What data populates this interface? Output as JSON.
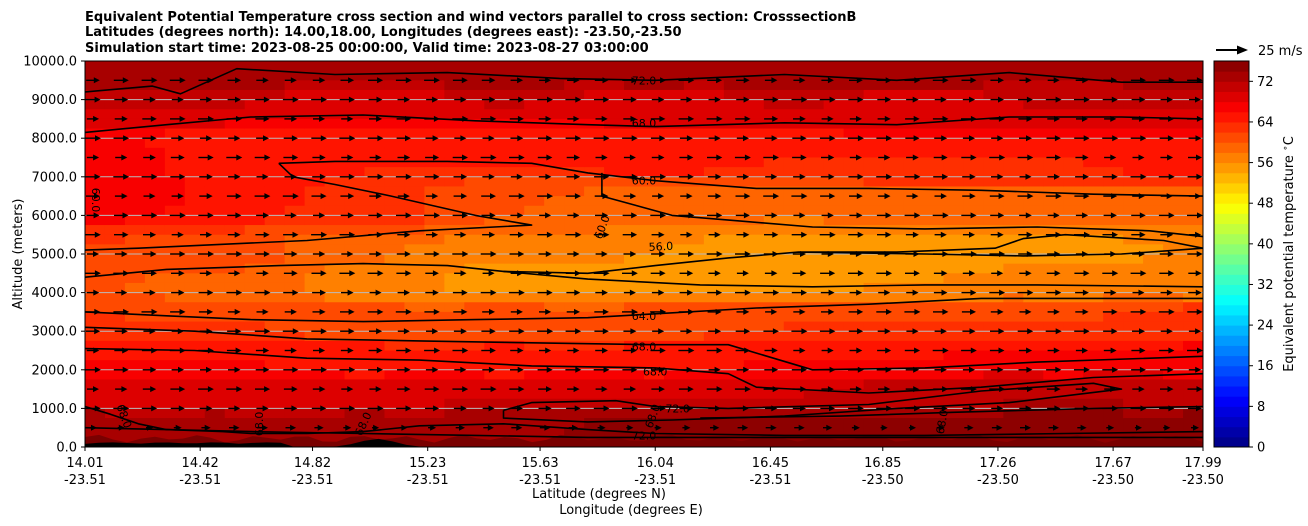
{
  "chart_data": {
    "type": "heatmap",
    "title_lines": [
      "Equivalent Potential Temperature cross section and wind vectors parallel to cross section: CrosssectionB",
      "Latitudes (degrees north): 14.00,18.00, Longitudes (degrees east): -23.50,-23.50",
      "Simulation start time: 2023-08-25 00:00:00, Valid time: 2023-08-27 03:00:00"
    ],
    "ylabel": "Altitude (meters)",
    "xlabel": "Latitude (degrees N)",
    "xlabel2": "Longitude (degrees E)",
    "ylim": [
      0,
      10000
    ],
    "xlim": [
      14.01,
      17.99
    ],
    "yticks": [
      "0.0",
      "1000.0",
      "2000.0",
      "3000.0",
      "4000.0",
      "5000.0",
      "6000.0",
      "7000.0",
      "8000.0",
      "9000.0",
      "10000.0"
    ],
    "ytick_values": [
      0,
      1000,
      2000,
      3000,
      4000,
      5000,
      6000,
      7000,
      8000,
      9000,
      10000
    ],
    "xticks_lat": [
      "14.01",
      "14.42",
      "14.82",
      "15.23",
      "15.63",
      "16.04",
      "16.45",
      "16.85",
      "17.26",
      "17.67",
      "17.99"
    ],
    "xticks_lon": [
      "-23.51",
      "-23.51",
      "-23.51",
      "-23.51",
      "-23.51",
      "-23.51",
      "-23.51",
      "-23.50",
      "-23.50",
      "-23.50",
      "-23.50"
    ],
    "xtick_values": [
      14.01,
      14.42,
      14.82,
      15.23,
      15.63,
      16.04,
      16.45,
      16.85,
      17.26,
      17.67,
      17.99
    ],
    "grid": "horizontal",
    "colorbar": {
      "label": "Equivalent potential temperature $^\\circ$C",
      "range": [
        0,
        76
      ],
      "ticks": [
        "0",
        "8",
        "16",
        "24",
        "32",
        "40",
        "48",
        "56",
        "64",
        "72"
      ],
      "tick_values": [
        0,
        8,
        16,
        24,
        32,
        40,
        48,
        56,
        64,
        72
      ],
      "colormap": "jet"
    },
    "quiver_key": "25 m/s",
    "contour_levels": [
      56,
      60,
      64,
      68,
      72
    ],
    "contour_labels": [
      "72.0",
      "68.0",
      "60.0",
      "60.0",
      "56.0",
      "60.0",
      "64.0",
      "68.0",
      "68.0",
      "72.0",
      "68.0",
      "68.0",
      "68.0",
      "72.0",
      "68.0",
      "68.0"
    ],
    "contours": [
      {
        "level": 72,
        "points": [
          [
            14.01,
            9200
          ],
          [
            14.25,
            9350
          ],
          [
            14.35,
            9150
          ],
          [
            14.55,
            9800
          ],
          [
            14.9,
            9650
          ],
          [
            15.3,
            9700
          ],
          [
            15.7,
            9550
          ],
          [
            16.04,
            9500
          ],
          [
            16.5,
            9650
          ],
          [
            16.9,
            9500
          ],
          [
            17.3,
            9700
          ],
          [
            17.7,
            9450
          ],
          [
            17.99,
            9450
          ]
        ]
      },
      {
        "level": 68,
        "points": [
          [
            14.01,
            8150
          ],
          [
            14.3,
            8350
          ],
          [
            14.6,
            8550
          ],
          [
            15.0,
            8600
          ],
          [
            15.4,
            8450
          ],
          [
            15.8,
            8350
          ],
          [
            16.04,
            8300
          ],
          [
            16.5,
            8400
          ],
          [
            16.9,
            8350
          ],
          [
            17.3,
            8550
          ],
          [
            17.7,
            8550
          ],
          [
            17.99,
            8500
          ]
        ]
      },
      {
        "level": 60,
        "points": [
          [
            14.7,
            7350
          ],
          [
            14.9,
            7400
          ],
          [
            15.3,
            7400
          ],
          [
            15.6,
            7350
          ],
          [
            15.8,
            7100
          ],
          [
            16.04,
            6900
          ],
          [
            16.4,
            6700
          ],
          [
            16.8,
            6700
          ],
          [
            17.2,
            6650
          ],
          [
            17.6,
            6550
          ],
          [
            17.99,
            6500
          ]
        ]
      },
      {
        "level": 60,
        "points": [
          [
            14.7,
            7350
          ],
          [
            14.75,
            7000
          ],
          [
            14.9,
            6800
          ],
          [
            15.1,
            6500
          ],
          [
            15.4,
            6000
          ],
          [
            15.6,
            5750
          ],
          [
            15.2,
            5600
          ],
          [
            14.8,
            5350
          ],
          [
            14.5,
            5250
          ],
          [
            14.2,
            5150
          ],
          [
            14.01,
            5100
          ]
        ]
      },
      {
        "level": 60,
        "points": [
          [
            15.85,
            7100
          ],
          [
            15.85,
            6500
          ],
          [
            16.1,
            6000
          ],
          [
            16.35,
            5850
          ],
          [
            16.6,
            5700
          ],
          [
            17.0,
            5650
          ],
          [
            17.4,
            5700
          ],
          [
            17.8,
            5600
          ],
          [
            17.99,
            5450
          ]
        ]
      },
      {
        "level": 56,
        "points": [
          [
            15.5,
            4550
          ],
          [
            15.8,
            4500
          ],
          [
            16.04,
            4700
          ],
          [
            16.3,
            4900
          ],
          [
            16.55,
            5050
          ],
          [
            17.0,
            5000
          ],
          [
            17.35,
            4950
          ],
          [
            17.7,
            5000
          ],
          [
            17.9,
            5100
          ],
          [
            17.99,
            5150
          ],
          [
            17.85,
            5350
          ],
          [
            17.5,
            5500
          ],
          [
            17.35,
            5400
          ],
          [
            17.25,
            5150
          ],
          [
            16.9,
            5050
          ],
          [
            16.55,
            5050
          ]
        ]
      },
      {
        "level": 56,
        "points": [
          [
            14.01,
            4400
          ],
          [
            14.3,
            4600
          ],
          [
            14.7,
            4700
          ],
          [
            15.0,
            4750
          ],
          [
            15.3,
            4700
          ],
          [
            15.5,
            4550
          ],
          [
            15.8,
            4350
          ],
          [
            16.2,
            4200
          ],
          [
            16.6,
            4150
          ],
          [
            17.0,
            4200
          ],
          [
            17.4,
            4200
          ],
          [
            17.99,
            4150
          ]
        ]
      },
      {
        "level": 60,
        "points": [
          [
            14.01,
            3500
          ],
          [
            14.3,
            3400
          ],
          [
            14.6,
            3300
          ],
          [
            15.0,
            3250
          ],
          [
            15.4,
            3300
          ],
          [
            15.8,
            3350
          ],
          [
            16.04,
            3450
          ],
          [
            16.4,
            3600
          ],
          [
            16.8,
            3700
          ],
          [
            17.2,
            3850
          ],
          [
            17.6,
            3850
          ],
          [
            17.99,
            3850
          ]
        ]
      },
      {
        "level": 64,
        "points": [
          [
            14.01,
            3100
          ],
          [
            14.4,
            3000
          ],
          [
            14.8,
            2800
          ],
          [
            15.2,
            2750
          ],
          [
            15.6,
            2700
          ],
          [
            16.04,
            2650
          ],
          [
            16.3,
            2650
          ],
          [
            16.6,
            2000
          ],
          [
            17.0,
            2050
          ],
          [
            17.4,
            2200
          ],
          [
            17.99,
            2350
          ]
        ]
      },
      {
        "level": 68,
        "points": [
          [
            14.01,
            2550
          ],
          [
            14.4,
            2500
          ],
          [
            14.8,
            2300
          ],
          [
            15.2,
            2250
          ],
          [
            15.6,
            2100
          ],
          [
            16.04,
            2050
          ],
          [
            16.3,
            1900
          ],
          [
            16.4,
            1550
          ],
          [
            16.8,
            1400
          ],
          [
            17.2,
            1550
          ],
          [
            17.6,
            1800
          ],
          [
            17.99,
            1900
          ]
        ]
      },
      {
        "level": 72,
        "points": [
          [
            15.5,
            950
          ],
          [
            15.6,
            1150
          ],
          [
            15.9,
            1200
          ],
          [
            16.04,
            1050
          ],
          [
            16.3,
            1000
          ],
          [
            16.8,
            1100
          ],
          [
            17.2,
            1450
          ],
          [
            17.6,
            1650
          ],
          [
            17.7,
            1500
          ],
          [
            17.3,
            1150
          ],
          [
            16.9,
            1000
          ],
          [
            16.5,
            800
          ],
          [
            16.1,
            700
          ],
          [
            15.8,
            650
          ],
          [
            15.5,
            750
          ],
          [
            15.5,
            950
          ]
        ]
      },
      {
        "level": 68,
        "points": [
          [
            14.01,
            1050
          ],
          [
            14.1,
            850
          ],
          [
            14.2,
            600
          ],
          [
            14.3,
            450
          ],
          [
            14.5,
            400
          ],
          [
            14.6,
            350
          ],
          [
            14.8,
            350
          ],
          [
            15.0,
            400
          ],
          [
            15.2,
            550
          ],
          [
            15.5,
            600
          ],
          [
            15.8,
            450
          ],
          [
            16.04,
            350
          ],
          [
            16.5,
            300
          ],
          [
            17.0,
            300
          ],
          [
            17.5,
            350
          ],
          [
            17.99,
            400
          ]
        ]
      },
      {
        "level": 72,
        "points": [
          [
            14.01,
            500
          ],
          [
            14.3,
            450
          ],
          [
            14.6,
            400
          ],
          [
            15.0,
            350
          ],
          [
            15.4,
            300
          ],
          [
            15.8,
            250
          ],
          [
            16.04,
            250
          ],
          [
            16.5,
            250
          ],
          [
            17.0,
            250
          ],
          [
            17.5,
            250
          ],
          [
            17.99,
            250
          ]
        ]
      },
      {
        "level": 68,
        "points": [
          [
            16.2,
            750
          ],
          [
            16.7,
            800
          ],
          [
            17.1,
            900
          ],
          [
            17.6,
            1000
          ],
          [
            17.99,
            1050
          ]
        ]
      }
    ],
    "temperature_field": [
      [
        14.01,
        9700,
        74
      ],
      [
        14.5,
        9700,
        74
      ],
      [
        15.0,
        9700,
        73
      ],
      [
        15.5,
        9700,
        74
      ],
      [
        16.04,
        9700,
        73
      ],
      [
        16.5,
        9700,
        74
      ],
      [
        17.0,
        9700,
        74
      ],
      [
        17.5,
        9700,
        73
      ],
      [
        17.99,
        9700,
        74
      ],
      [
        14.01,
        8800,
        70
      ],
      [
        14.5,
        8900,
        70
      ],
      [
        15.0,
        9000,
        69
      ],
      [
        15.5,
        9000,
        70
      ],
      [
        16.04,
        8900,
        69
      ],
      [
        16.5,
        9000,
        70
      ],
      [
        17.0,
        8900,
        69
      ],
      [
        17.5,
        9000,
        70
      ],
      [
        17.99,
        8900,
        70
      ],
      [
        14.01,
        7600,
        67
      ],
      [
        14.5,
        7800,
        65
      ],
      [
        15.0,
        7800,
        64
      ],
      [
        15.5,
        7700,
        64
      ],
      [
        16.04,
        7600,
        65
      ],
      [
        16.5,
        7500,
        64
      ],
      [
        17.0,
        7400,
        64
      ],
      [
        17.5,
        7400,
        64
      ],
      [
        17.99,
        7400,
        65
      ],
      [
        14.01,
        6300,
        67
      ],
      [
        14.5,
        6400,
        66
      ],
      [
        15.0,
        6200,
        63
      ],
      [
        15.5,
        6200,
        60
      ],
      [
        16.04,
        6200,
        59
      ],
      [
        16.5,
        6200,
        58
      ],
      [
        17.0,
        6200,
        59
      ],
      [
        17.5,
        6200,
        59
      ],
      [
        17.99,
        6200,
        59
      ],
      [
        14.01,
        5000,
        62
      ],
      [
        14.5,
        5000,
        61
      ],
      [
        15.0,
        5000,
        58
      ],
      [
        15.5,
        5000,
        57
      ],
      [
        16.04,
        5000,
        56
      ],
      [
        16.5,
        5000,
        54
      ],
      [
        17.0,
        5000,
        54
      ],
      [
        17.5,
        5000,
        55
      ],
      [
        17.99,
        5000,
        56
      ],
      [
        14.01,
        4200,
        60
      ],
      [
        14.5,
        4200,
        59
      ],
      [
        15.0,
        4200,
        57
      ],
      [
        15.5,
        4300,
        55
      ],
      [
        16.04,
        4300,
        55
      ],
      [
        16.5,
        4300,
        55
      ],
      [
        17.0,
        4300,
        56
      ],
      [
        17.5,
        4300,
        57
      ],
      [
        17.99,
        4300,
        57
      ],
      [
        14.01,
        3300,
        62
      ],
      [
        14.5,
        3200,
        62
      ],
      [
        15.0,
        3200,
        61
      ],
      [
        15.5,
        3200,
        61
      ],
      [
        16.04,
        3200,
        61
      ],
      [
        16.5,
        3200,
        62
      ],
      [
        17.0,
        3200,
        62
      ],
      [
        17.5,
        3200,
        62
      ],
      [
        17.99,
        3200,
        63
      ],
      [
        14.01,
        2400,
        66
      ],
      [
        14.5,
        2300,
        66
      ],
      [
        15.0,
        2200,
        65
      ],
      [
        15.5,
        2200,
        65
      ],
      [
        16.04,
        2200,
        65
      ],
      [
        16.5,
        2200,
        66
      ],
      [
        17.0,
        2200,
        66
      ],
      [
        17.5,
        2200,
        67
      ],
      [
        17.99,
        2200,
        67
      ],
      [
        14.01,
        1400,
        69
      ],
      [
        14.5,
        1400,
        69
      ],
      [
        15.0,
        1400,
        69
      ],
      [
        15.5,
        1400,
        70
      ],
      [
        16.04,
        1400,
        70
      ],
      [
        16.5,
        1400,
        70
      ],
      [
        17.0,
        1400,
        71
      ],
      [
        17.5,
        1400,
        72
      ],
      [
        17.99,
        1400,
        71
      ],
      [
        14.01,
        500,
        73
      ],
      [
        14.5,
        500,
        73
      ],
      [
        15.0,
        500,
        73
      ],
      [
        15.5,
        500,
        74
      ],
      [
        16.04,
        500,
        75
      ],
      [
        16.5,
        500,
        75
      ],
      [
        17.0,
        500,
        75
      ],
      [
        17.5,
        500,
        76
      ],
      [
        17.99,
        500,
        75
      ]
    ],
    "wind": {
      "direction": "positive along cross section",
      "rows": [
        9500,
        9000,
        8500,
        8000,
        7500,
        7000,
        6500,
        6000,
        5500,
        5000,
        4500,
        4000,
        3500,
        3000,
        2500,
        2000,
        1500,
        1000,
        500
      ],
      "columns": 40
    }
  }
}
